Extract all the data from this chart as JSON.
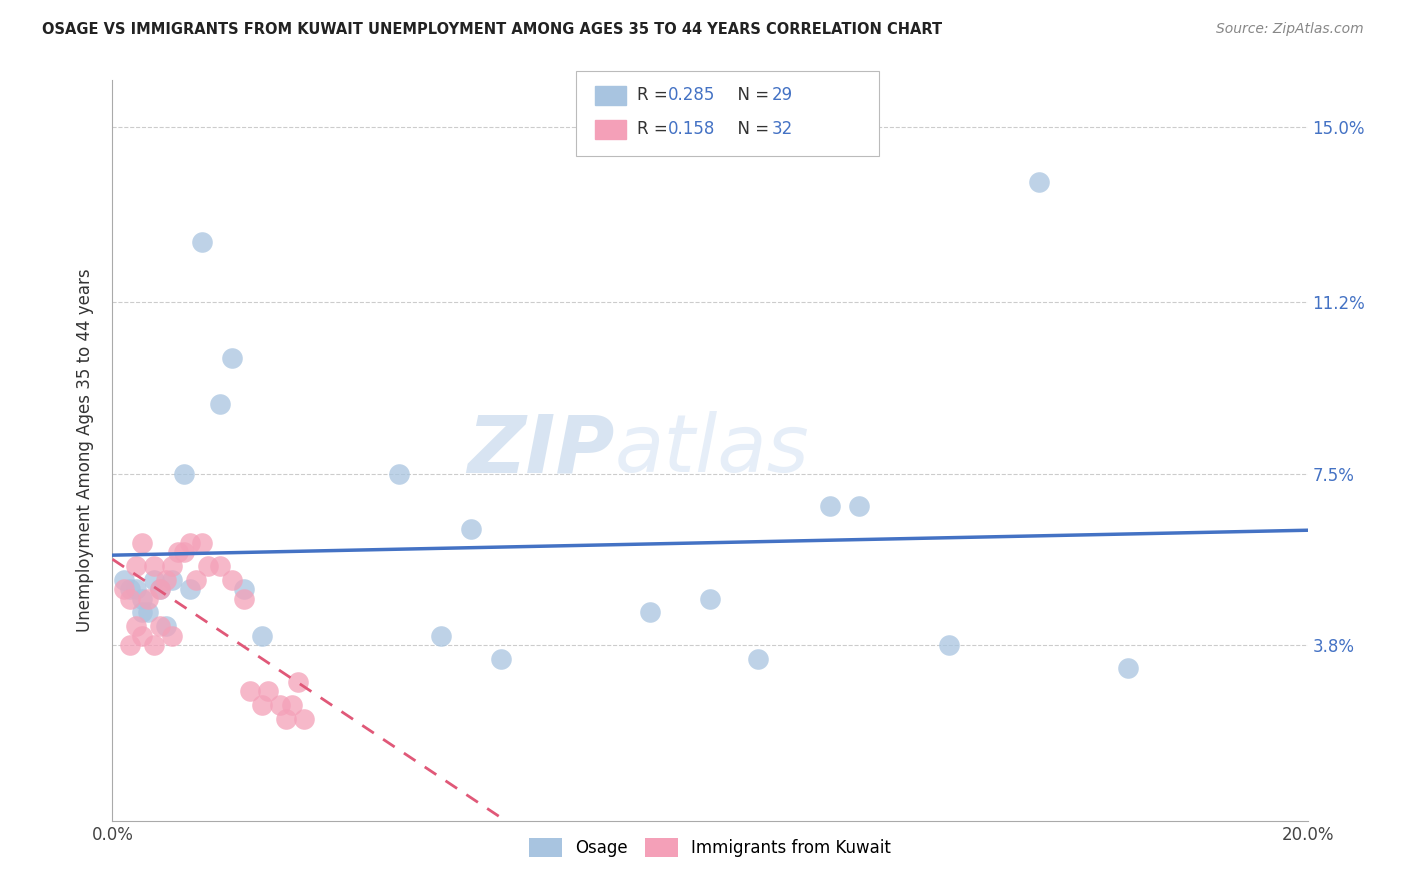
{
  "title": "OSAGE VS IMMIGRANTS FROM KUWAIT UNEMPLOYMENT AMONG AGES 35 TO 44 YEARS CORRELATION CHART",
  "source": "Source: ZipAtlas.com",
  "ylabel": "Unemployment Among Ages 35 to 44 years",
  "xmin": 0.0,
  "xmax": 0.2,
  "ymin": 0.0,
  "ymax": 0.16,
  "yticks": [
    0.038,
    0.075,
    0.112,
    0.15
  ],
  "ytick_labels": [
    "3.8%",
    "7.5%",
    "11.2%",
    "15.0%"
  ],
  "xticks": [
    0.0,
    0.04,
    0.08,
    0.12,
    0.16,
    0.2
  ],
  "xtick_labels": [
    "0.0%",
    "",
    "",
    "",
    "",
    "20.0%"
  ],
  "color_blue": "#a8c4e0",
  "color_pink": "#f4a0b8",
  "line_blue": "#4472c4",
  "line_pink": "#e05878",
  "watermark_zip": "ZIP",
  "watermark_atlas": "atlas",
  "osage_x": [
    0.002,
    0.003,
    0.004,
    0.005,
    0.005,
    0.006,
    0.007,
    0.008,
    0.009,
    0.01,
    0.012,
    0.013,
    0.015,
    0.018,
    0.02,
    0.022,
    0.025,
    0.048,
    0.055,
    0.06,
    0.065,
    0.09,
    0.1,
    0.12,
    0.14,
    0.155,
    0.17,
    0.108,
    0.125
  ],
  "osage_y": [
    0.052,
    0.05,
    0.05,
    0.048,
    0.045,
    0.045,
    0.052,
    0.05,
    0.042,
    0.052,
    0.075,
    0.05,
    0.125,
    0.09,
    0.1,
    0.05,
    0.04,
    0.075,
    0.04,
    0.063,
    0.035,
    0.045,
    0.048,
    0.068,
    0.038,
    0.138,
    0.033,
    0.035,
    0.068
  ],
  "kuwait_x": [
    0.002,
    0.003,
    0.003,
    0.004,
    0.004,
    0.005,
    0.005,
    0.006,
    0.007,
    0.007,
    0.008,
    0.008,
    0.009,
    0.01,
    0.01,
    0.011,
    0.012,
    0.013,
    0.014,
    0.015,
    0.016,
    0.018,
    0.02,
    0.022,
    0.023,
    0.025,
    0.026,
    0.028,
    0.029,
    0.03,
    0.031,
    0.032
  ],
  "kuwait_y": [
    0.05,
    0.048,
    0.038,
    0.055,
    0.042,
    0.06,
    0.04,
    0.048,
    0.055,
    0.038,
    0.05,
    0.042,
    0.052,
    0.055,
    0.04,
    0.058,
    0.058,
    0.06,
    0.052,
    0.06,
    0.055,
    0.055,
    0.052,
    0.048,
    0.028,
    0.025,
    0.028,
    0.025,
    0.022,
    0.025,
    0.03,
    0.022
  ]
}
